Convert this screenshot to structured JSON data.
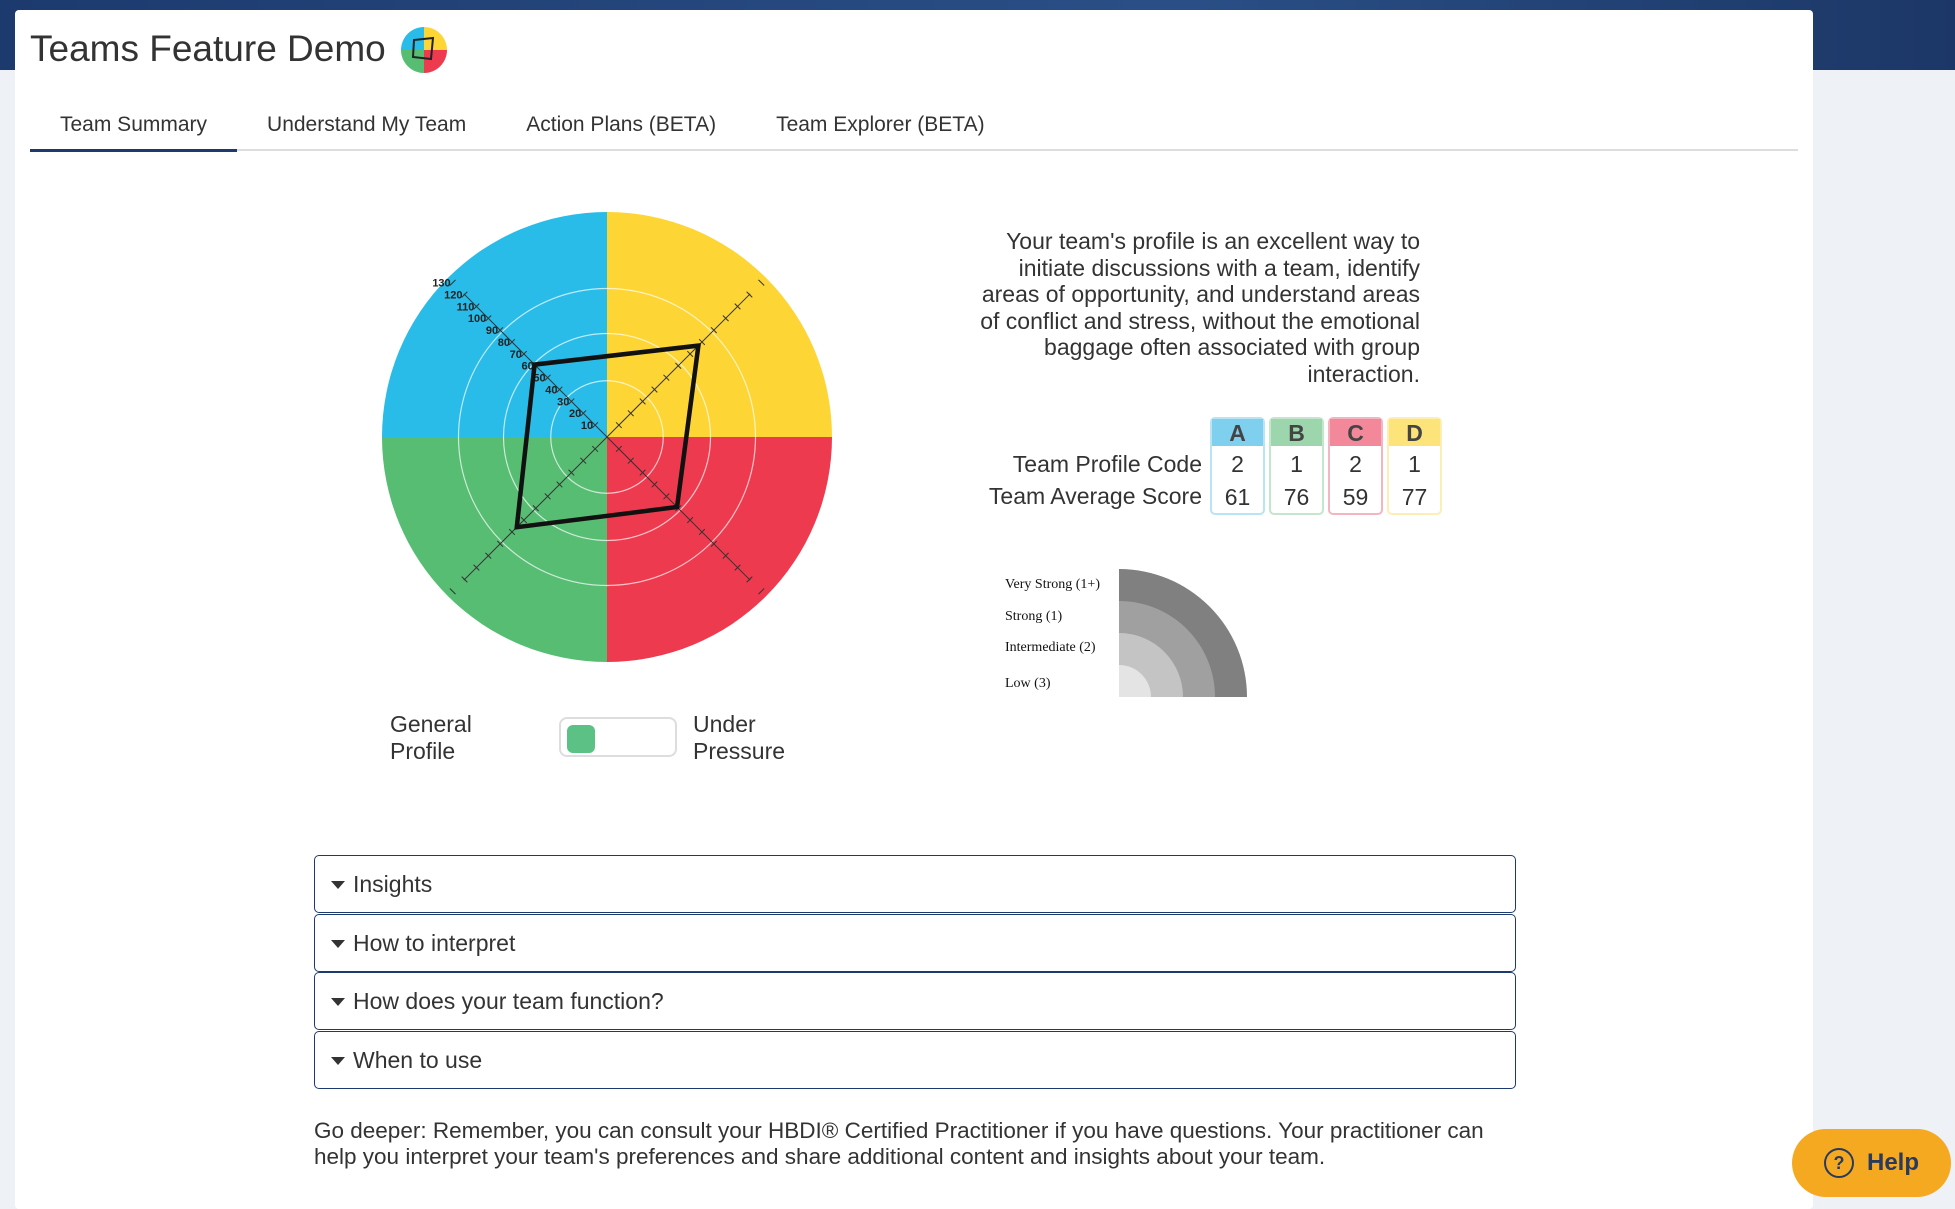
{
  "header": {
    "title": "Teams Feature Demo"
  },
  "tabs": [
    "Team Summary",
    "Understand My Team",
    "Action Plans (BETA)",
    "Team Explorer (BETA)"
  ],
  "profile_chart": {
    "ticks": [
      10,
      20,
      30,
      40,
      50,
      60,
      70,
      80,
      90,
      100,
      110,
      120,
      130
    ]
  },
  "description": "Your team's profile is an excellent way to initiate discussions with a team, identify areas of opportunity, and understand areas of conflict and stress, without the emotional baggage often associated with group interaction.",
  "table": {
    "columns": [
      "A",
      "B",
      "C",
      "D"
    ],
    "row_labels": [
      "Team Profile Code",
      "Team Average Score"
    ],
    "profile_code": [
      2,
      1,
      2,
      1
    ],
    "average_score": [
      61,
      76,
      59,
      77
    ]
  },
  "legend": [
    "Very Strong (1+)",
    "Strong (1)",
    "Intermediate (2)",
    "Low (3)"
  ],
  "toggle": {
    "left": "General Profile",
    "right": "Under Pressure"
  },
  "accordion": [
    "Insights",
    "How to interpret",
    "How does your team function?",
    "When to use"
  ],
  "footer": "Go deeper: Remember, you can consult your HBDI® Certified Practitioner if you have questions. Your practitioner can help you interpret your team's preferences and share additional content and insights about your team.",
  "help": "Help"
}
